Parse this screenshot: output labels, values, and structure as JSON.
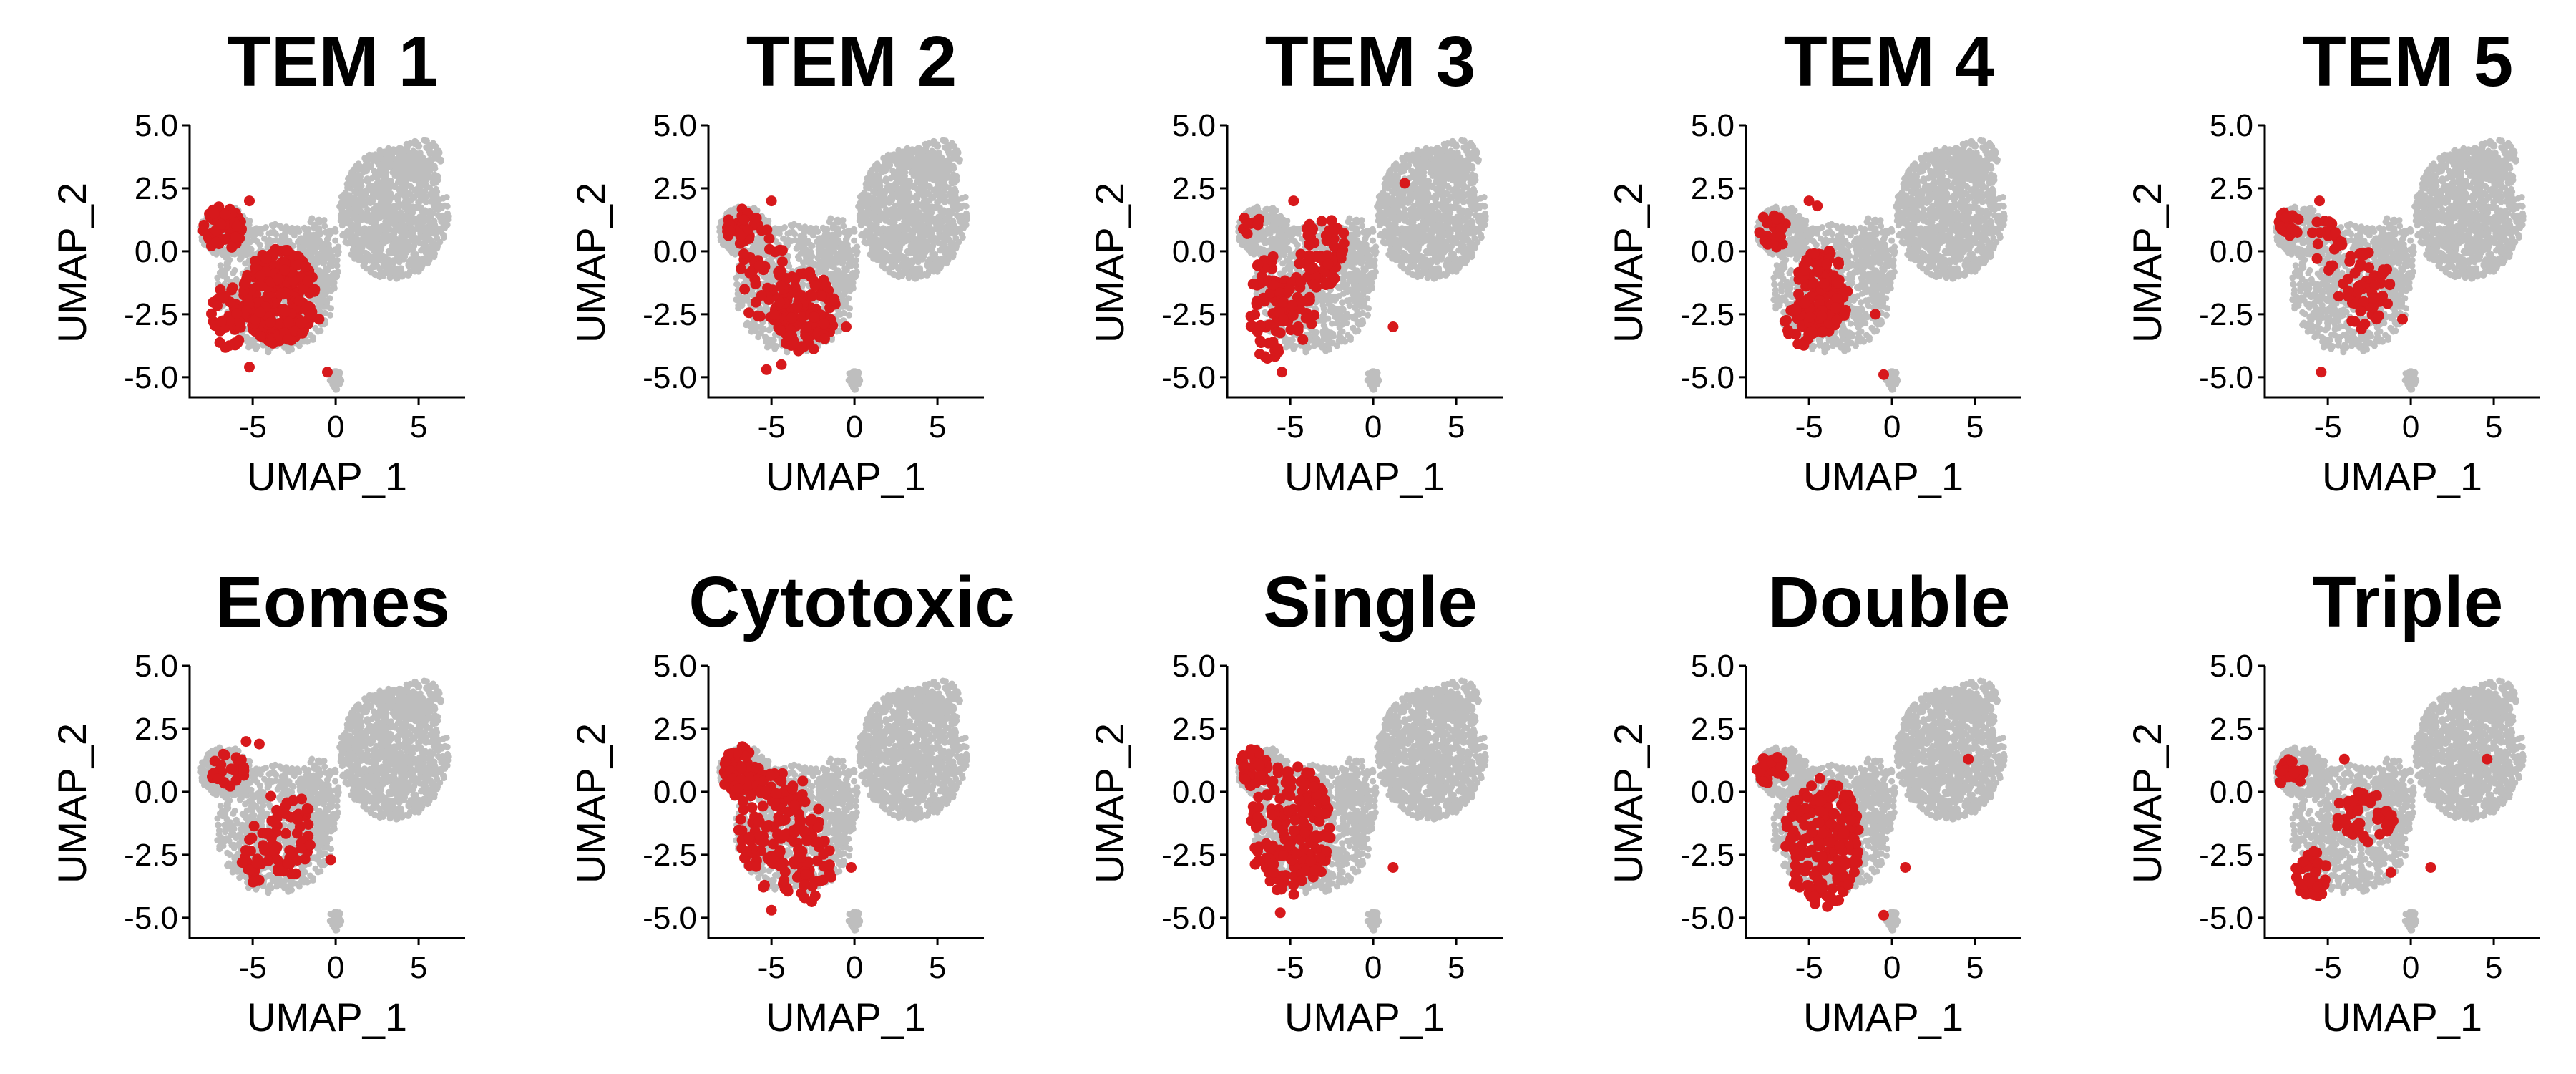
{
  "chart_data": {
    "type": "scatter",
    "xlabel": "UMAP_1",
    "ylabel": "UMAP_2",
    "xlim": [
      -8.8,
      7.8
    ],
    "ylim": [
      -5.8,
      5.0
    ],
    "xticks": [
      -5,
      0,
      5
    ],
    "xtick_labels": [
      "-5",
      "0",
      "5"
    ],
    "yticks": [
      5.0,
      2.5,
      0.0,
      -2.5,
      -5.0
    ],
    "ytick_labels": [
      "5.0",
      "2.5",
      "0.0",
      "-2.5",
      "-5.0"
    ],
    "grid": false,
    "legend": "none",
    "colors": {
      "background_cells": "#BEBEBE",
      "highlighted_cells": "#D7191C"
    },
    "background_cells": {
      "description_free_regions": true,
      "regions": [
        {
          "cx": 3.5,
          "cy": 1.5,
          "rx": 3.3,
          "ry": 2.6,
          "n": 1000
        },
        {
          "cx": 5.0,
          "cy": 3.6,
          "rx": 1.4,
          "ry": 0.9,
          "n": 120
        },
        {
          "cx": -3.6,
          "cy": -1.5,
          "rx": 3.6,
          "ry": 2.6,
          "n": 700
        },
        {
          "cx": -6.6,
          "cy": 0.8,
          "rx": 1.6,
          "ry": 1.0,
          "n": 200
        },
        {
          "cx": -1.0,
          "cy": -0.2,
          "rx": 1.3,
          "ry": 1.6,
          "n": 150
        },
        {
          "cx": 0.0,
          "cy": -5.1,
          "rx": 0.4,
          "ry": 0.4,
          "n": 25
        }
      ]
    },
    "panels": [
      {
        "title": "TEM 1",
        "highlighted_regions": [
          {
            "cx": -3.4,
            "cy": -1.8,
            "rx": 2.2,
            "ry": 1.9,
            "n": 260
          },
          {
            "cx": -6.8,
            "cy": 0.9,
            "rx": 1.2,
            "ry": 0.9,
            "n": 60
          },
          {
            "cx": -6.5,
            "cy": -2.6,
            "rx": 1.0,
            "ry": 1.3,
            "n": 40
          }
        ],
        "highlighted_points": [
          [
            -0.5,
            -4.8
          ],
          [
            -1.0,
            -2.7
          ],
          [
            -5.2,
            2.0
          ],
          [
            -5.2,
            -4.6
          ],
          [
            -1.5,
            -2.5
          ]
        ]
      },
      {
        "title": "TEM 2",
        "highlighted_regions": [
          {
            "cx": -3.0,
            "cy": -2.4,
            "rx": 1.9,
            "ry": 1.6,
            "n": 140
          },
          {
            "cx": -6.8,
            "cy": 1.0,
            "rx": 1.0,
            "ry": 0.7,
            "n": 35
          },
          {
            "cx": -5.5,
            "cy": -1.0,
            "rx": 1.4,
            "ry": 1.9,
            "n": 45
          }
        ],
        "highlighted_points": [
          [
            -0.5,
            -3.0
          ],
          [
            -5.3,
            -4.7
          ],
          [
            -4.4,
            -4.5
          ],
          [
            -5.0,
            2.0
          ]
        ]
      },
      {
        "title": "TEM 3",
        "highlighted_regions": [
          {
            "cx": -3.0,
            "cy": 0.0,
            "rx": 1.4,
            "ry": 1.5,
            "n": 70
          },
          {
            "cx": -6.3,
            "cy": -2.2,
            "rx": 1.2,
            "ry": 2.2,
            "n": 60
          },
          {
            "cx": -4.5,
            "cy": -2.0,
            "rx": 1.2,
            "ry": 1.6,
            "n": 40
          },
          {
            "cx": -7.3,
            "cy": 1.1,
            "rx": 0.6,
            "ry": 0.5,
            "n": 10
          }
        ],
        "highlighted_points": [
          [
            1.9,
            2.7
          ],
          [
            1.2,
            -3.0
          ],
          [
            -5.5,
            -4.8
          ],
          [
            -4.8,
            2.0
          ]
        ]
      },
      {
        "title": "TEM 4",
        "highlighted_regions": [
          {
            "cx": -4.2,
            "cy": -1.6,
            "rx": 1.6,
            "ry": 1.7,
            "n": 130
          },
          {
            "cx": -7.2,
            "cy": 0.8,
            "rx": 0.9,
            "ry": 0.7,
            "n": 25
          },
          {
            "cx": -5.6,
            "cy": -3.0,
            "rx": 0.9,
            "ry": 0.8,
            "n": 25
          }
        ],
        "highlighted_points": [
          [
            -0.5,
            -4.9
          ],
          [
            -1.0,
            -2.5
          ],
          [
            -5.0,
            2.0
          ],
          [
            -4.5,
            1.8
          ]
        ]
      },
      {
        "title": "TEM 5",
        "highlighted_regions": [
          {
            "cx": -2.8,
            "cy": -1.5,
            "rx": 1.6,
            "ry": 1.6,
            "n": 55
          },
          {
            "cx": -7.3,
            "cy": 1.1,
            "rx": 0.8,
            "ry": 0.5,
            "n": 20
          },
          {
            "cx": -5.0,
            "cy": 0.5,
            "rx": 1.0,
            "ry": 1.3,
            "n": 20
          }
        ],
        "highlighted_points": [
          [
            -0.5,
            -2.7
          ],
          [
            -5.4,
            -4.8
          ],
          [
            -5.5,
            2.0
          ]
        ]
      },
      {
        "title": "Eomes",
        "highlighted_regions": [
          {
            "cx": -3.0,
            "cy": -1.6,
            "rx": 1.6,
            "ry": 1.8,
            "n": 60
          },
          {
            "cx": -6.5,
            "cy": 0.9,
            "rx": 1.1,
            "ry": 0.7,
            "n": 25
          },
          {
            "cx": -5.0,
            "cy": -2.5,
            "rx": 1.0,
            "ry": 1.2,
            "n": 20
          }
        ],
        "highlighted_points": [
          [
            -0.3,
            -2.7
          ],
          [
            -5.4,
            2.0
          ],
          [
            -4.6,
            1.9
          ]
        ]
      },
      {
        "title": "Cytotoxic",
        "highlighted_regions": [
          {
            "cx": -6.8,
            "cy": 0.8,
            "rx": 1.2,
            "ry": 1.0,
            "n": 80
          },
          {
            "cx": -4.5,
            "cy": -1.5,
            "rx": 2.5,
            "ry": 2.5,
            "n": 150
          },
          {
            "cx": -2.5,
            "cy": -3.0,
            "rx": 1.2,
            "ry": 1.4,
            "n": 30
          }
        ],
        "highlighted_points": [
          [
            -0.2,
            -3.0
          ],
          [
            -5.0,
            -4.7
          ]
        ]
      },
      {
        "title": "Single",
        "highlighted_regions": [
          {
            "cx": -5.0,
            "cy": -1.5,
            "rx": 2.5,
            "ry": 2.6,
            "n": 180
          },
          {
            "cx": -7.2,
            "cy": 0.9,
            "rx": 0.9,
            "ry": 0.8,
            "n": 35
          }
        ],
        "highlighted_points": [
          [
            1.2,
            -3.0
          ],
          [
            -5.6,
            -4.8
          ]
        ]
      },
      {
        "title": "Double",
        "highlighted_regions": [
          {
            "cx": -4.2,
            "cy": -2.0,
            "rx": 2.3,
            "ry": 2.6,
            "n": 200
          },
          {
            "cx": -7.3,
            "cy": 0.9,
            "rx": 0.9,
            "ry": 0.6,
            "n": 30
          }
        ],
        "highlighted_points": [
          [
            4.6,
            1.3
          ],
          [
            -0.5,
            -4.9
          ],
          [
            0.8,
            -3.0
          ]
        ]
      },
      {
        "title": "Triple",
        "highlighted_regions": [
          {
            "cx": -2.8,
            "cy": -1.0,
            "rx": 2.0,
            "ry": 1.0,
            "n": 50
          },
          {
            "cx": -6.0,
            "cy": -3.3,
            "rx": 1.0,
            "ry": 1.0,
            "n": 40
          },
          {
            "cx": -7.2,
            "cy": 0.7,
            "rx": 0.8,
            "ry": 0.6,
            "n": 25
          }
        ],
        "highlighted_points": [
          [
            4.6,
            1.3
          ],
          [
            1.2,
            -3.0
          ],
          [
            -1.2,
            -3.2
          ],
          [
            -4.0,
            1.3
          ]
        ]
      }
    ]
  }
}
